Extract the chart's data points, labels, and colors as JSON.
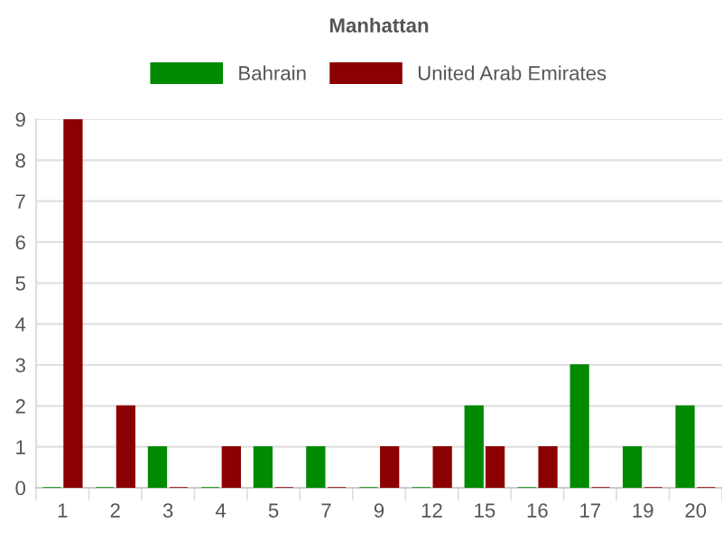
{
  "chart_data": {
    "type": "bar",
    "title": "Manhattan",
    "categories": [
      "1",
      "2",
      "3",
      "4",
      "5",
      "7",
      "9",
      "12",
      "15",
      "16",
      "17",
      "19",
      "20"
    ],
    "series": [
      {
        "name": "Bahrain",
        "color": "#008a00",
        "values": [
          0,
          0,
          1,
          0,
          1,
          1,
          0,
          0,
          2,
          0,
          3,
          1,
          2
        ]
      },
      {
        "name": "United Arab Emirates",
        "color": "#8b0000",
        "values": [
          9,
          2,
          0,
          1,
          0,
          0,
          1,
          1,
          1,
          1,
          0,
          0,
          0
        ]
      }
    ],
    "ylim": [
      0,
      9
    ],
    "yticks": [
      0,
      1,
      2,
      3,
      4,
      5,
      6,
      7,
      8,
      9
    ],
    "grid": "y",
    "legend": "top"
  }
}
